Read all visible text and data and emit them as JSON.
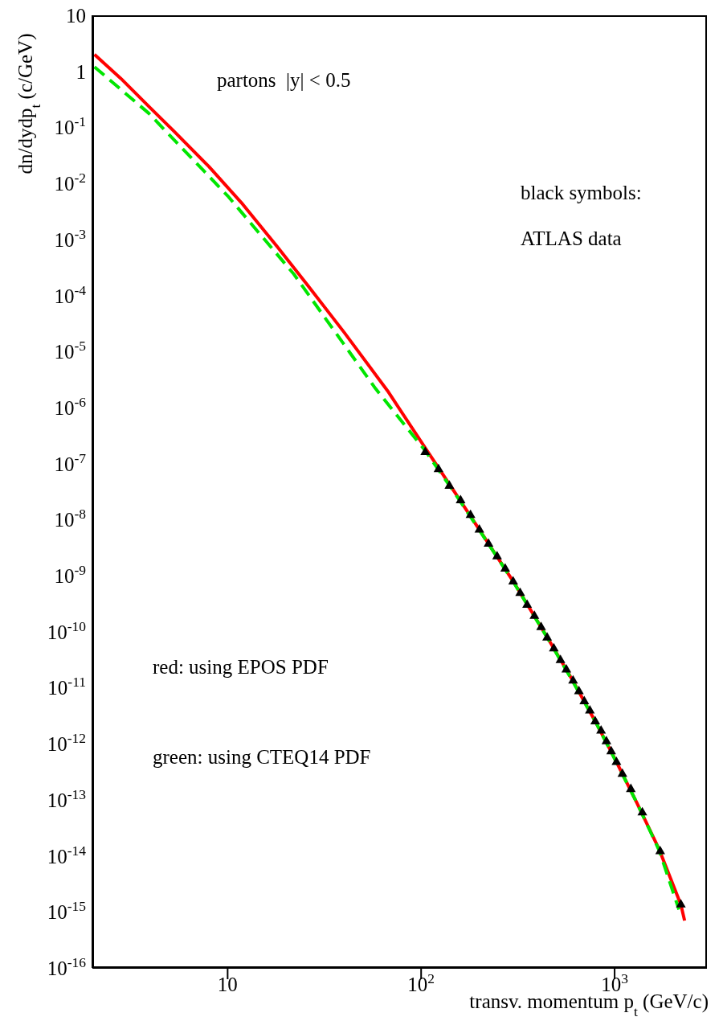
{
  "chart_data": {
    "type": "line",
    "xlabel": "transv. momentum p$_{t}$ (GeV/c)",
    "ylabel": "dn/dydp$_{t}$ (c/GeV)",
    "log": "xy",
    "xlim": [
      2,
      3000
    ],
    "ylim": [
      1e-16,
      10
    ],
    "xticks": [
      10,
      {
        "value": 100,
        "label": "10$^{2}$"
      },
      {
        "value": 1000,
        "label": "10$^{3}$"
      }
    ],
    "yticks": [
      10,
      1,
      {
        "value": 0.1,
        "label": "10$^{-1}$"
      },
      {
        "value": 0.01,
        "label": "10$^{-2}$"
      },
      {
        "value": 0.001,
        "label": "10$^{-3}$"
      },
      {
        "value": 0.0001,
        "label": "10$^{-4}$"
      },
      {
        "value": 1e-05,
        "label": "10$^{-5}$"
      },
      {
        "value": 1e-06,
        "label": "10$^{-6}$"
      },
      {
        "value": 1e-07,
        "label": "10$^{-7}$"
      },
      {
        "value": 1e-08,
        "label": "10$^{-8}$"
      },
      {
        "value": 1e-09,
        "label": "10$^{-9}$"
      },
      {
        "value": 1e-10,
        "label": "10$^{-10}$"
      },
      {
        "value": 1e-11,
        "label": "10$^{-11}$"
      },
      {
        "value": 1e-12,
        "label": "10$^{-12}$"
      },
      {
        "value": 1e-13,
        "label": "10$^{-13}$"
      },
      {
        "value": 1e-14,
        "label": "10$^{-14}$"
      },
      {
        "value": 1e-15,
        "label": "10$^{-15}$"
      },
      {
        "value": 1e-16,
        "label": "10$^{-16}$"
      }
    ],
    "series": [
      {
        "color": "#ff0000",
        "line_style": "solid",
        "marker": "none",
        "x": [
          2.05,
          2.8,
          4,
          5.3,
          8,
          11.8,
          18,
          26,
          40,
          67,
          105,
          150,
          200,
          300,
          450,
          600,
          800,
          1000,
          1300,
          1700,
          2200,
          2300
        ],
        "values": [
          2,
          0.75,
          0.22,
          0.084,
          0.02,
          0.0045,
          0.00075,
          0.00015,
          2.2e-05,
          2e-06,
          1.9e-07,
          3e-08,
          6.6e-09,
          7.8e-10,
          7.8e-11,
          1.45e-11,
          2.4e-12,
          5.5e-13,
          9e-14,
          1.3e-14,
          1.35e-15,
          7e-16
        ]
      },
      {
        "color": "#00e600",
        "line_style": "dashed",
        "marker": "none",
        "x": [
          2.05,
          3.9,
          10,
          22,
          58,
          105,
          150,
          200,
          300,
          450,
          600,
          800,
          1000,
          1300,
          1700,
          2150
        ],
        "values": [
          1.2,
          0.18,
          0.006,
          0.00024,
          2.2e-06,
          1.7e-07,
          2.9e-08,
          6.5e-09,
          7.7e-10,
          7.7e-11,
          1.4e-11,
          2.4e-12,
          5.4e-13,
          9e-14,
          1.25e-14,
          1.1e-15
        ]
      },
      {
        "type": "scatter",
        "color": "#000000",
        "marker": "triangle",
        "x": [
          105,
          123,
          140,
          160,
          180,
          200,
          223,
          247,
          272,
          299,
          325,
          353,
          385,
          417,
          448,
          485,
          525,
          563,
          610,
          654,
          697,
          745,
          794,
          851,
          907,
          960,
          1022,
          1097,
          1213,
          1391,
          1720,
          2200
        ],
        "values": [
          1.6e-07,
          7.9e-08,
          4e-08,
          2.2e-08,
          1.2e-08,
          6.6e-09,
          3.7e-09,
          2.2e-09,
          1.33e-09,
          7.8e-10,
          4.9e-10,
          3e-10,
          1.9e-10,
          1.2e-10,
          7.8e-11,
          5e-11,
          3.1e-11,
          2.1e-11,
          1.33e-11,
          8.6e-12,
          5.7e-12,
          3.9e-12,
          2.5e-12,
          1.7e-12,
          1.1e-12,
          7.3e-13,
          4.7e-13,
          2.9e-13,
          1.55e-13,
          5.9e-14,
          1.2e-14,
          1.35e-15
        ]
      }
    ],
    "annotations": [
      "partons  |y| < 0.5",
      "black symbols:",
      "ATLAS data",
      "red: using EPOS PDF",
      "green: using CTEQ14 PDF"
    ]
  }
}
